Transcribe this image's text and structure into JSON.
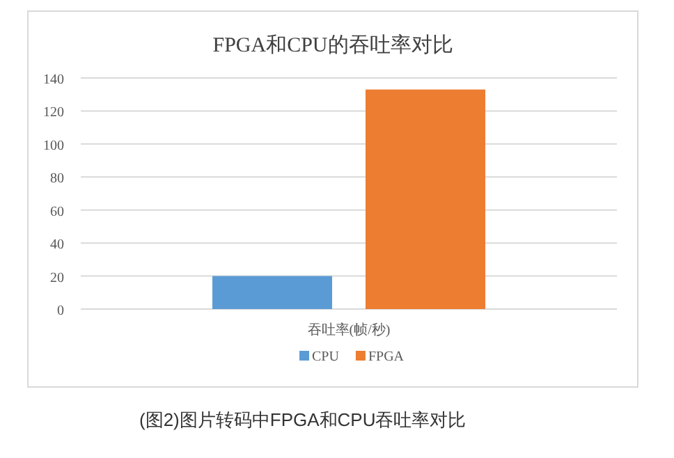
{
  "chart_data": {
    "type": "bar",
    "title": "FPGA和CPU的吞吐率对比",
    "categories": [
      "吞吐率(帧/秒)"
    ],
    "series": [
      {
        "name": "CPU",
        "color": "#5b9bd5",
        "values": [
          20
        ]
      },
      {
        "name": "FPGA",
        "color": "#ed7d31",
        "values": [
          133
        ]
      }
    ],
    "ylim": [
      0,
      140
    ],
    "yticks": [
      0,
      20,
      40,
      60,
      80,
      100,
      120,
      140
    ],
    "grid": "y",
    "legend": "bottom",
    "annotations": [
      "(图2)图片转码中FPGA和CPU吞吐率对比"
    ]
  }
}
